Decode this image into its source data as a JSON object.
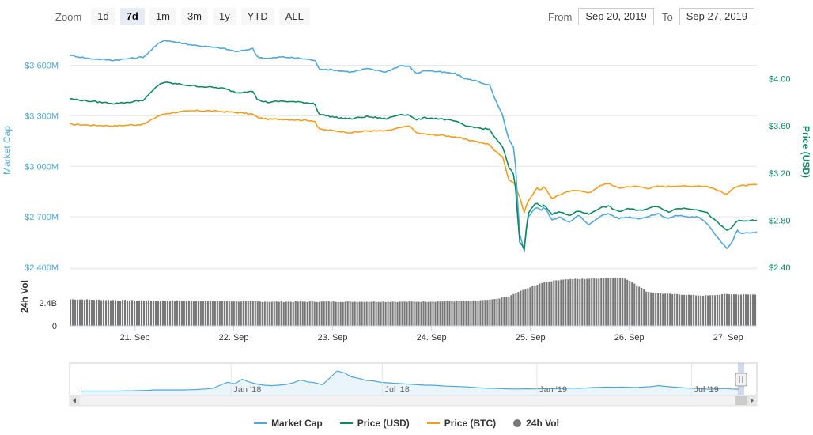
{
  "toolbar": {
    "zoom_label": "Zoom",
    "buttons": [
      "1d",
      "7d",
      "1m",
      "3m",
      "1y",
      "YTD",
      "ALL"
    ],
    "active": "7d",
    "from_label": "From",
    "from_value": "Sep 20, 2019",
    "to_label": "To",
    "to_value": "Sep 27, 2019"
  },
  "colors": {
    "market_cap": "#4fa8d8",
    "price_usd": "#0f8a5f",
    "price_btc": "#f29e1b",
    "volume": "#777777"
  },
  "chart_data": {
    "type": "line",
    "x_tick_labels": [
      "21. Sep",
      "22. Sep",
      "23. Sep",
      "24. Sep",
      "25. Sep",
      "26. Sep",
      "27. Sep"
    ],
    "x_ticks": [
      0.66,
      1.66,
      2.66,
      3.66,
      4.66,
      5.66,
      6.66
    ],
    "x_range": [
      0,
      6.95
    ],
    "ylabel_left": "Market Cap",
    "ylabel_right": "Price (USD)",
    "y_left_ticks": [
      "$3 600M",
      "$3 300M",
      "$3 000M",
      "$2 700M",
      "$2 400M"
    ],
    "y_left_tick_values": [
      3600,
      3300,
      3000,
      2700,
      2400
    ],
    "y_left_range": [
      2400,
      3800
    ],
    "y_right_ticks": [
      "$4.00",
      "$3.60",
      "$3.20",
      "$2.80",
      "$2.40"
    ],
    "y_right_tick_values": [
      4.0,
      3.6,
      3.2,
      2.8,
      2.4
    ],
    "y_right_range": [
      2.4,
      4.4
    ],
    "series": [
      {
        "name": "Market Cap",
        "axis": "left",
        "x": [
          0,
          0.2,
          0.45,
          0.6,
          0.75,
          0.9,
          0.95,
          1.05,
          1.15,
          1.25,
          1.4,
          1.55,
          1.7,
          1.85,
          1.9,
          2.0,
          2.15,
          2.35,
          2.48,
          2.52,
          2.7,
          2.85,
          3.0,
          3.2,
          3.35,
          3.45,
          3.5,
          3.6,
          3.75,
          3.9,
          4.0,
          4.1,
          4.15,
          4.25,
          4.3,
          4.38,
          4.44,
          4.5,
          4.55,
          4.6,
          4.63,
          4.68,
          4.72,
          4.77,
          4.8,
          4.83,
          4.88,
          4.95,
          5.05,
          5.15,
          5.25,
          5.35,
          5.45,
          5.55,
          5.65,
          5.75,
          5.85,
          5.95,
          6.05,
          6.15,
          6.25,
          6.35,
          6.45,
          6.55,
          6.65,
          6.7,
          6.75,
          6.8,
          6.95
        ],
        "values": [
          3660,
          3640,
          3630,
          3640,
          3650,
          3730,
          3750,
          3740,
          3730,
          3720,
          3710,
          3700,
          3680,
          3700,
          3650,
          3640,
          3650,
          3640,
          3630,
          3580,
          3570,
          3560,
          3580,
          3560,
          3600,
          3590,
          3550,
          3570,
          3560,
          3550,
          3520,
          3510,
          3500,
          3480,
          3400,
          3300,
          3160,
          3100,
          2600,
          2490,
          2700,
          2730,
          2760,
          2740,
          2760,
          2730,
          2680,
          2700,
          2670,
          2710,
          2650,
          2700,
          2720,
          2690,
          2700,
          2690,
          2700,
          2720,
          2690,
          2710,
          2700,
          2700,
          2660,
          2580,
          2510,
          2550,
          2620,
          2600,
          2610
        ]
      },
      {
        "name": "Price (USD)",
        "axis": "right",
        "x": [
          0,
          0.2,
          0.45,
          0.6,
          0.75,
          0.9,
          0.95,
          1.05,
          1.15,
          1.25,
          1.4,
          1.55,
          1.7,
          1.85,
          1.9,
          2.0,
          2.15,
          2.35,
          2.48,
          2.52,
          2.7,
          2.85,
          3.0,
          3.2,
          3.35,
          3.45,
          3.5,
          3.6,
          3.75,
          3.9,
          4.0,
          4.1,
          4.15,
          4.25,
          4.3,
          4.38,
          4.44,
          4.5,
          4.55,
          4.6,
          4.63,
          4.68,
          4.72,
          4.77,
          4.8,
          4.83,
          4.88,
          4.95,
          5.05,
          5.15,
          5.25,
          5.35,
          5.45,
          5.55,
          5.65,
          5.75,
          5.85,
          5.95,
          6.05,
          6.15,
          6.25,
          6.35,
          6.45,
          6.55,
          6.65,
          6.7,
          6.75,
          6.8,
          6.95
        ],
        "values": [
          3.83,
          3.81,
          3.79,
          3.8,
          3.82,
          3.95,
          3.97,
          3.96,
          3.95,
          3.94,
          3.93,
          3.92,
          3.88,
          3.9,
          3.82,
          3.8,
          3.81,
          3.8,
          3.79,
          3.7,
          3.67,
          3.66,
          3.68,
          3.66,
          3.7,
          3.69,
          3.65,
          3.67,
          3.66,
          3.64,
          3.6,
          3.59,
          3.58,
          3.57,
          3.5,
          3.42,
          3.25,
          3.18,
          2.62,
          2.55,
          2.85,
          2.91,
          2.95,
          2.91,
          2.94,
          2.9,
          2.85,
          2.87,
          2.84,
          2.88,
          2.85,
          2.9,
          2.92,
          2.87,
          2.9,
          2.88,
          2.9,
          2.92,
          2.87,
          2.9,
          2.9,
          2.89,
          2.86,
          2.78,
          2.71,
          2.74,
          2.8,
          2.79,
          2.8
        ]
      },
      {
        "name": "Price (BTC)",
        "axis": "left",
        "x": [
          0,
          0.2,
          0.45,
          0.6,
          0.75,
          0.9,
          0.95,
          1.05,
          1.15,
          1.25,
          1.4,
          1.55,
          1.7,
          1.85,
          1.9,
          2.0,
          2.15,
          2.35,
          2.48,
          2.52,
          2.7,
          2.85,
          3.0,
          3.2,
          3.35,
          3.45,
          3.5,
          3.6,
          3.75,
          3.9,
          4.0,
          4.1,
          4.15,
          4.25,
          4.3,
          4.38,
          4.44,
          4.5,
          4.55,
          4.6,
          4.63,
          4.68,
          4.72,
          4.77,
          4.8,
          4.83,
          4.88,
          4.95,
          5.05,
          5.15,
          5.25,
          5.35,
          5.45,
          5.55,
          5.65,
          5.75,
          5.85,
          5.95,
          6.05,
          6.15,
          6.25,
          6.35,
          6.45,
          6.55,
          6.65,
          6.7,
          6.75,
          6.8,
          6.95
        ],
        "values": [
          3250,
          3245,
          3240,
          3245,
          3250,
          3300,
          3310,
          3320,
          3325,
          3330,
          3330,
          3325,
          3320,
          3310,
          3290,
          3280,
          3280,
          3275,
          3270,
          3220,
          3210,
          3200,
          3210,
          3210,
          3230,
          3240,
          3200,
          3190,
          3185,
          3175,
          3160,
          3150,
          3140,
          3130,
          3090,
          3060,
          2920,
          2900,
          2820,
          2720,
          2790,
          2830,
          2870,
          2860,
          2880,
          2850,
          2810,
          2830,
          2850,
          2860,
          2840,
          2880,
          2900,
          2870,
          2880,
          2880,
          2870,
          2880,
          2880,
          2885,
          2880,
          2885,
          2880,
          2860,
          2830,
          2870,
          2880,
          2885,
          2890
        ]
      },
      {
        "name": "24h Vol",
        "axis": "volume",
        "x": [
          0,
          0.5,
          1.0,
          1.5,
          2.0,
          2.5,
          3.0,
          3.5,
          4.0,
          4.2,
          4.3,
          4.45,
          4.55,
          4.65,
          4.8,
          5.0,
          5.2,
          5.5,
          5.55,
          5.65,
          5.75,
          5.85,
          6.0,
          6.2,
          6.4,
          6.5,
          6.65,
          6.8,
          6.95
        ],
        "values": [
          2.8,
          2.7,
          2.65,
          2.6,
          2.55,
          2.55,
          2.55,
          2.55,
          2.6,
          2.7,
          2.8,
          3.1,
          3.6,
          4.0,
          4.6,
          4.9,
          4.95,
          5.05,
          5.1,
          4.9,
          4.3,
          3.6,
          3.4,
          3.3,
          3.2,
          3.2,
          3.35,
          3.3,
          3.3
        ]
      }
    ],
    "volume_label": "24h Vol",
    "volume_ticks": [
      "2.4B",
      "0"
    ],
    "volume_tick_values": [
      2.4,
      0
    ],
    "volume_range": [
      0,
      6.0
    ]
  },
  "navigator": {
    "labels": [
      "Jan '18",
      "Jul '18",
      "Jan '19",
      "Jul '19"
    ],
    "label_positions": [
      0.235,
      0.455,
      0.68,
      0.905
    ],
    "series": [
      0.05,
      0.05,
      0.05,
      0.05,
      0.05,
      0.05,
      0.06,
      0.06,
      0.07,
      0.08,
      0.1,
      0.1,
      0.1,
      0.1,
      0.1,
      0.11,
      0.12,
      0.14,
      0.17,
      0.3,
      0.42,
      0.36,
      0.55,
      0.43,
      0.35,
      0.3,
      0.28,
      0.3,
      0.33,
      0.4,
      0.52,
      0.44,
      0.4,
      0.32,
      0.6,
      0.9,
      0.82,
      0.65,
      0.58,
      0.5,
      0.48,
      0.42,
      0.4,
      0.38,
      0.36,
      0.34,
      0.32,
      0.3,
      0.3,
      0.28,
      0.26,
      0.25,
      0.24,
      0.22,
      0.2,
      0.18,
      0.17,
      0.16,
      0.15,
      0.14,
      0.14,
      0.15,
      0.14,
      0.15,
      0.16,
      0.15,
      0.16,
      0.18,
      0.17,
      0.18,
      0.2,
      0.21,
      0.22,
      0.21,
      0.22,
      0.21,
      0.2,
      0.22,
      0.24,
      0.28,
      0.25,
      0.22,
      0.2,
      0.18,
      0.16,
      0.15,
      0.13,
      0.15,
      0.16,
      0.14,
      0.13
    ]
  },
  "legend": [
    {
      "label": "Market Cap",
      "key": "market_cap",
      "kind": "line"
    },
    {
      "label": "Price (USD)",
      "key": "price_usd",
      "kind": "line"
    },
    {
      "label": "Price (BTC)",
      "key": "price_btc",
      "kind": "line"
    },
    {
      "label": "24h Vol",
      "key": "volume",
      "kind": "dot"
    }
  ]
}
